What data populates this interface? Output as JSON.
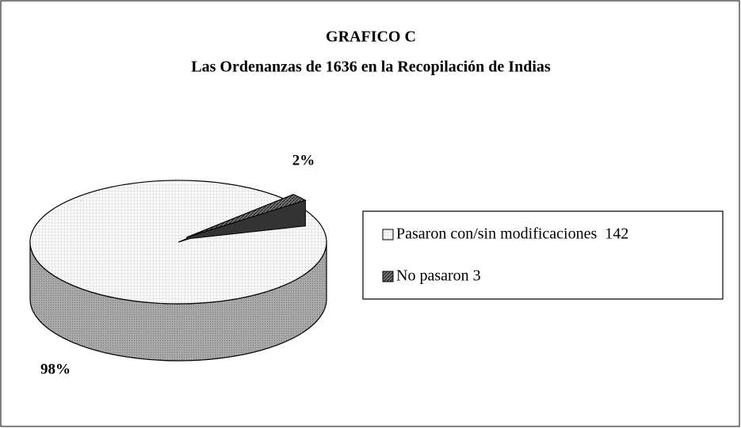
{
  "chart_data": {
    "type": "pie",
    "three_d": true,
    "title": "GRAFICO C",
    "subtitle": "Las Ordenanzas de 1636 en la Recopilación de Indias",
    "categories": [
      "Pasaron con/sin modificaciones  142",
      "No pasaron 3"
    ],
    "values": [
      98,
      2
    ],
    "value_labels": [
      "98%",
      "2%"
    ],
    "colors": [
      "#f4f4f4",
      "#555555"
    ],
    "legend": "right"
  }
}
